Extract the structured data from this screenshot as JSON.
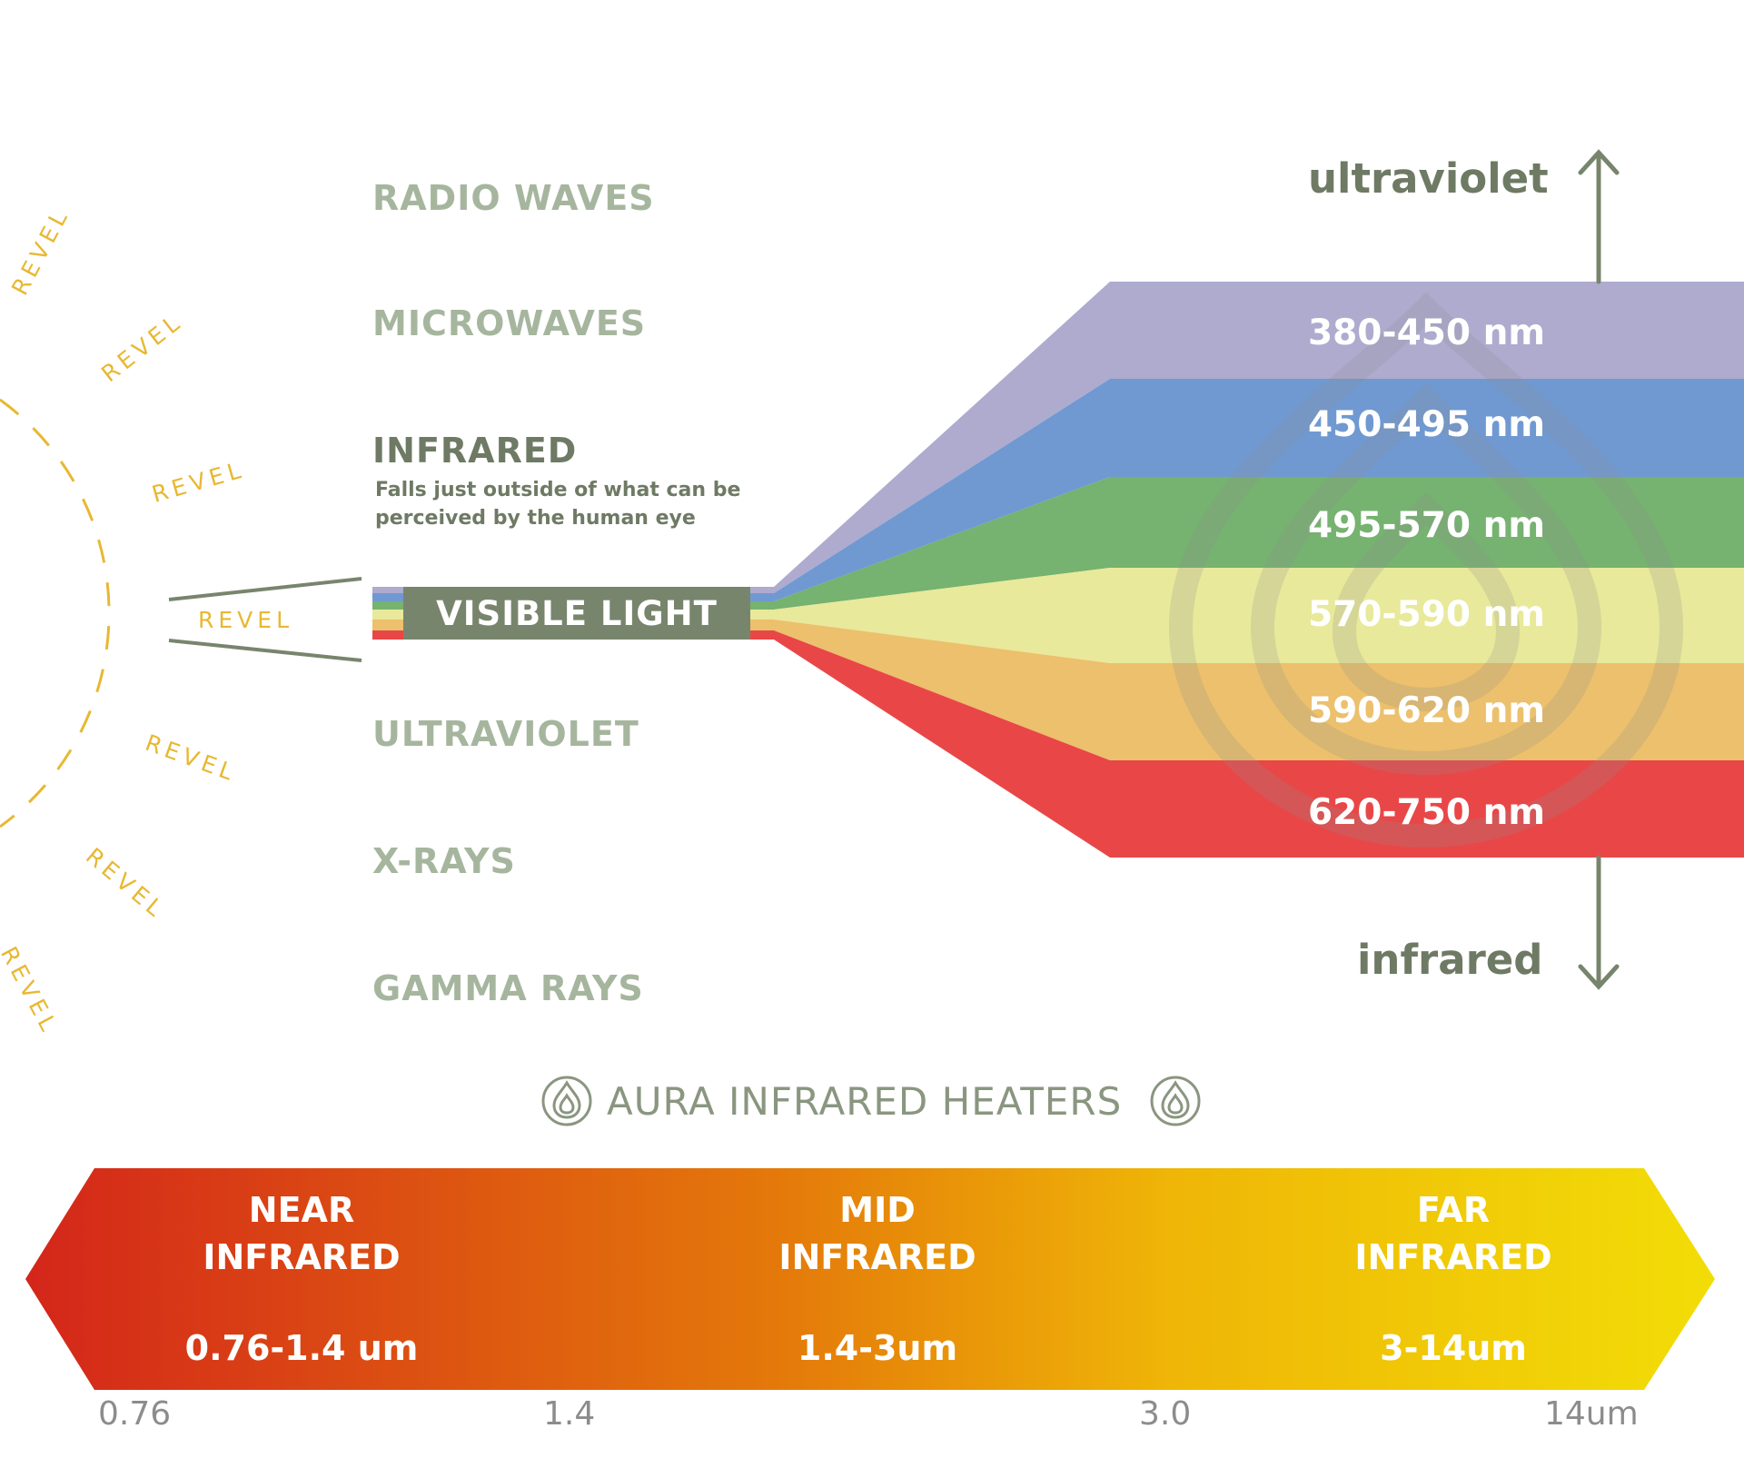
{
  "spectrum": {
    "radio": "RADIO WAVES",
    "microwaves": "MICROWAVES",
    "infrared": "INFRARED",
    "infrared_desc_line1": "Falls just outside of what can be",
    "infrared_desc_line2": "perceived by the human eye",
    "visible": "VISIBLE LIGHT",
    "ultraviolet": "ULTRAVIOLET",
    "xrays": "X-RAYS",
    "gamma": "GAMMA RAYS"
  },
  "bands": [
    {
      "label": "380-450 nm",
      "color": "#aeabcf"
    },
    {
      "label": "450-495 nm",
      "color": "#7099d2"
    },
    {
      "label": "495-570 nm",
      "color": "#76b270"
    },
    {
      "label": "570-590 nm",
      "color": "#e8e99a"
    },
    {
      "label": "590-620 nm",
      "color": "#ecc06c"
    },
    {
      "label": "620-750 nm",
      "color": "#e94747"
    }
  ],
  "direction": {
    "up": "ultraviolet",
    "down": "infrared"
  },
  "watermark": {
    "text": "REVEL",
    "color": "#e8b832"
  },
  "aura": {
    "title": "AURA INFRARED HEATERS",
    "icon": "droplet-icon"
  },
  "infrared_bar": {
    "gradient": [
      "#d4261a",
      "#e47a0a",
      "#efb607",
      "#f2dd07"
    ],
    "near": {
      "line1": "NEAR",
      "line2": "INFRARED",
      "range": "0.76-1.4 um"
    },
    "mid": {
      "line1": "MID",
      "line2": "INFRARED",
      "range": "1.4-3um"
    },
    "far": {
      "line1": "FAR",
      "line2": "INFRARED",
      "range": "3-14um"
    },
    "ticks": [
      "0.76",
      "1.4",
      "3.0",
      "14um"
    ]
  }
}
